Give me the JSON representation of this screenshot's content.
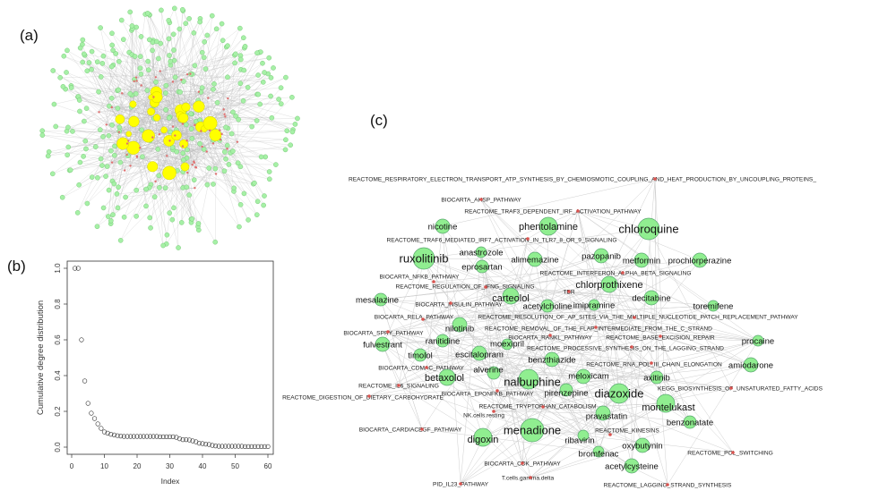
{
  "panel_labels": {
    "a": "(a)",
    "b": "(b)",
    "c": "(c)"
  },
  "panel_a": {
    "description_colors": {
      "drug_node": "#a6f0a6",
      "hub_node": "#ffff00",
      "pathway_node": "#e07070",
      "edge": "#bbbbbb"
    }
  },
  "chart_data": {
    "type": "scatter",
    "title": "",
    "xlabel": "Index",
    "ylabel": "Cumulative degree distribution",
    "xlim": [
      0,
      60
    ],
    "ylim": [
      0,
      1
    ],
    "xticks": [
      "0",
      "10",
      "20",
      "30",
      "40",
      "50",
      "60"
    ],
    "yticks": [
      "0.0",
      "0.2",
      "0.4",
      "0.6",
      "0.8",
      "1.0"
    ],
    "x": [
      1,
      2,
      3,
      4,
      5,
      6,
      7,
      8,
      9,
      10,
      11,
      12,
      13,
      14,
      15,
      16,
      17,
      18,
      19,
      20,
      21,
      22,
      23,
      24,
      25,
      26,
      27,
      28,
      29,
      30,
      31,
      32,
      33,
      34,
      35,
      36,
      37,
      38,
      39,
      40,
      41,
      42,
      43,
      44,
      45,
      46,
      47,
      48,
      49,
      50,
      51,
      52,
      53,
      54,
      55,
      56,
      57,
      58,
      59,
      60
    ],
    "y": [
      1.0,
      1.0,
      0.6,
      0.37,
      0.245,
      0.19,
      0.16,
      0.13,
      0.105,
      0.085,
      0.078,
      0.072,
      0.068,
      0.064,
      0.062,
      0.06,
      0.06,
      0.06,
      0.06,
      0.06,
      0.06,
      0.06,
      0.06,
      0.06,
      0.06,
      0.06,
      0.058,
      0.058,
      0.058,
      0.058,
      0.058,
      0.055,
      0.047,
      0.042,
      0.042,
      0.04,
      0.035,
      0.03,
      0.022,
      0.02,
      0.017,
      0.015,
      0.01,
      0.007,
      0.005,
      0.005,
      0.005,
      0.005,
      0.005,
      0.005,
      0.005,
      0.005,
      0.003,
      0.003,
      0.003,
      0.003,
      0.003,
      0.003,
      0.003,
      0.003
    ],
    "grid": false,
    "marker": "open-circle"
  },
  "panel_c": {
    "drugs": [
      "chloroquine",
      "phentolamine",
      "nicotine",
      "ruxolitinib",
      "anastrozole",
      "eprosartan",
      "alimemazine",
      "pazopanib",
      "metformin",
      "prochlorperazine",
      "chlorprothixene",
      "carteolol",
      "acetylcholine",
      "imipramine",
      "decitabine",
      "toremifene",
      "mesalazine",
      "nilotinib",
      "fulvestrant",
      "ranitidine",
      "timolol",
      "moexipril",
      "escitalopram",
      "benzthiazide",
      "alverine",
      "betaxolol",
      "nalbuphine",
      "meloxicam",
      "pirenzepine",
      "axitinib",
      "amiodarone",
      "diazoxide",
      "montelukast",
      "pravastatin",
      "procaine",
      "menadione",
      "digoxin",
      "benzonatate",
      "ribavirin",
      "oxybutynin",
      "bromfenac",
      "acetylcysteine"
    ],
    "pathways": [
      "REACTOME_RESPIRATORY_ELECTRON_TRANSPORT_ATP_SYNTHESIS_BY_CHEMIOSMOTIC_COUPLING_AND_HEAT_PRODUCTION_BY_UNCOUPLING_PROTEINS_",
      "BIOCARTA_AHSP_PATHWAY",
      "REACTOME_TRAF3_DEPENDENT_IRF_ACTIVATION_PATHWAY",
      "REACTOME_TRAF6_MEDIATED_IRF7_ACTIVATION_IN_TLR7_8_OR_9_SIGNALING",
      "REACTOME_INTERFERON_ALPHA_BETA_SIGNALING",
      "BIOCARTA_NFKB_PATHWAY",
      "REACTOME_REGULATION_OF_IFNG_SIGNALING",
      "TBR",
      "BIOCARTA_INSULIN_PATHWAY",
      "BIOCARTA_RELA_PATHWAY",
      "REACTOME_RESOLUTION_OF_AP_SITES_VIA_THE_MULTIPLE_NUCLEOTIDE_PATCH_REPLACEMENT_PATHWAY",
      "BIOCARTA_SPRY_PATHWAY",
      "REACTOME_REMOVAL_OF_THE_FLAP_INTERMEDIATE_FROM_THE_C_STRAND",
      "BIOCARTA_RANKL_PATHWAY",
      "REACTOME_BASE_EXCISION_REPAIR",
      "REACTOME_PROCESSIVE_SYNTHESIS_ON_THE_LAGGING_STRAND",
      "REACTOME_RNA_POL_III_CHAIN_ELONGATION",
      "BIOCARTA_CDMAC_PATHWAY",
      "REACTOME_IL6_SIGNALING",
      "KEGG_BIOSYNTHESIS_OF_UNSATURATED_FATTY_ACIDS",
      "REACTOME_DIGESTION_OF_DIETARY_CARBOHYDRATE",
      "BIOCARTA_EPONFKB_PATHWAY",
      "REACTOME_TRYPTOPHAN_CATABOLISM",
      "NK.cells.resting",
      "REACTOME_KINESINS",
      "BIOCARTA_CARDIACEGF_PATHWAY",
      "BIOCARTA_CDK_PATHWAY",
      "REACTOME_POL_SWITCHING",
      "T.cells.gamma.delta",
      "PID_IL23_PATHWAY",
      "REACTOME_LAGGING_STRAND_SYNTHESIS"
    ],
    "colors": {
      "drug_fill": "#90ee90",
      "drug_stroke": "#5aa870",
      "pathway_dot": "#d9534f",
      "edge": "#cfcfcf"
    }
  }
}
